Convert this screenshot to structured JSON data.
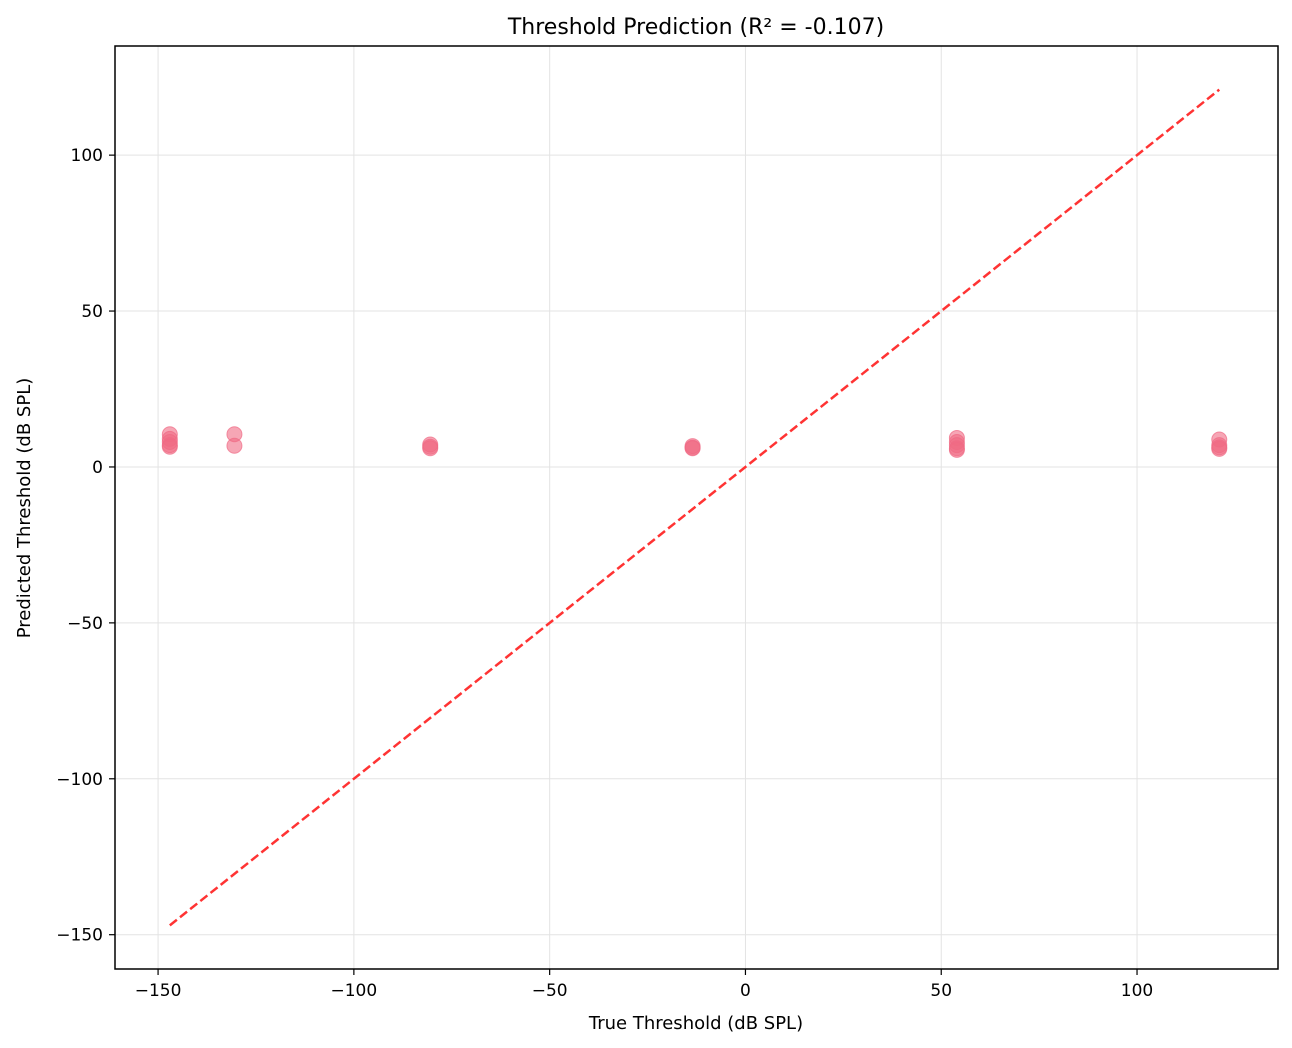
{
  "chart_data": {
    "type": "scatter",
    "title": "Threshold Prediction (R² = -0.107)",
    "xlabel": "True Threshold (dB SPL)",
    "ylabel": "Predicted Threshold (dB SPL)",
    "xlim": [
      -161,
      136
    ],
    "ylim": [
      -161,
      135
    ],
    "xticks": [
      -150,
      -100,
      -50,
      0,
      50,
      100
    ],
    "xtick_labels": [
      "−150",
      "−100",
      "−50",
      "0",
      "50",
      "100"
    ],
    "yticks": [
      -150,
      -100,
      -50,
      0,
      50,
      100
    ],
    "ytick_labels": [
      "−150",
      "−100",
      "−50",
      "0",
      "50",
      "100"
    ],
    "grid": true,
    "series": [
      {
        "marker_color": "#f06a84",
        "points": [
          [
            -147,
            10.5
          ],
          [
            -147,
            9.0
          ],
          [
            -147,
            8.0
          ],
          [
            -147,
            7.0
          ],
          [
            -147,
            6.5
          ],
          [
            -130.5,
            10.5
          ],
          [
            -130.5,
            6.8
          ],
          [
            -80.5,
            7.2
          ],
          [
            -80.5,
            6.5
          ],
          [
            -80.5,
            6.0
          ],
          [
            -13.5,
            6.7
          ],
          [
            -13.5,
            6.2
          ],
          [
            -13.5,
            6.0
          ],
          [
            54,
            9.3
          ],
          [
            54,
            8.0
          ],
          [
            54,
            7.0
          ],
          [
            54,
            6.0
          ],
          [
            54,
            5.5
          ],
          [
            121,
            8.8
          ],
          [
            121,
            7.0
          ],
          [
            121,
            6.3
          ],
          [
            121,
            5.8
          ]
        ]
      }
    ],
    "reference_line": {
      "style": "dashed",
      "color": "#ff3333",
      "from": [
        -147,
        -147
      ],
      "to": [
        121,
        121
      ]
    }
  }
}
